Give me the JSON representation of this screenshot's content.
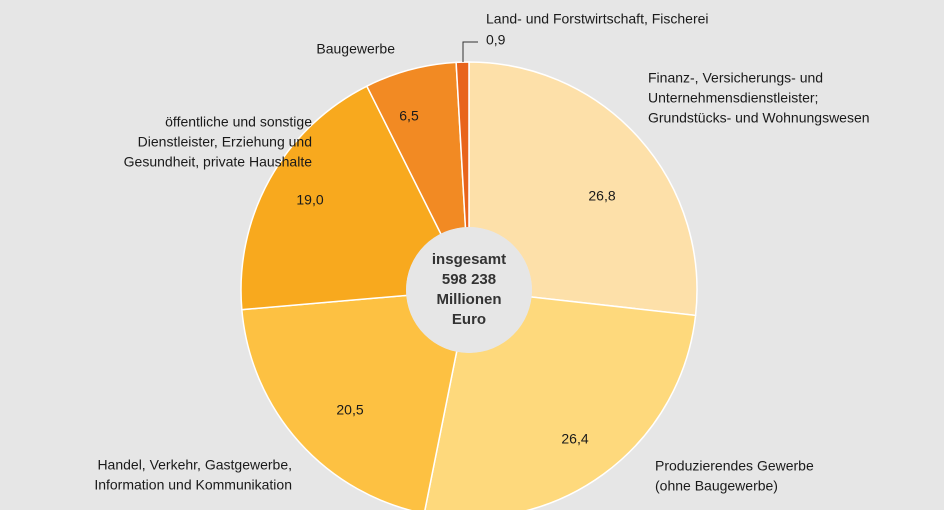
{
  "chart_data": {
    "type": "donut",
    "categories": [
      [
        "Finanz-, Versicherungs- und",
        "Unternehmensdienstleister;",
        "Grundstücks- und Wohnungswesen"
      ],
      [
        "Produzierendes Gewerbe",
        "(ohne Baugewerbe)"
      ],
      [
        "Handel, Verkehr, Gastgewerbe,",
        "Information und Kommunikation"
      ],
      [
        "öffentliche und sonstige",
        "Dienstleister, Erziehung und",
        "Gesundheit, private Haushalte"
      ],
      [
        "Baugewerbe"
      ],
      [
        "Land- und Forstwirtschaft, Fischerei"
      ]
    ],
    "values": [
      26.8,
      26.4,
      20.5,
      19.0,
      6.5,
      0.9
    ],
    "value_labels": [
      "26,8",
      "26,4",
      "20,5",
      "19,0",
      "6,5",
      "0,9"
    ],
    "colors": [
      "#fde0a9",
      "#fed97c",
      "#fdc142",
      "#f8a91e",
      "#f28a23",
      "#e8641c"
    ],
    "center_label": [
      "insgesamt",
      "598 238",
      "Millionen",
      "Euro"
    ]
  }
}
